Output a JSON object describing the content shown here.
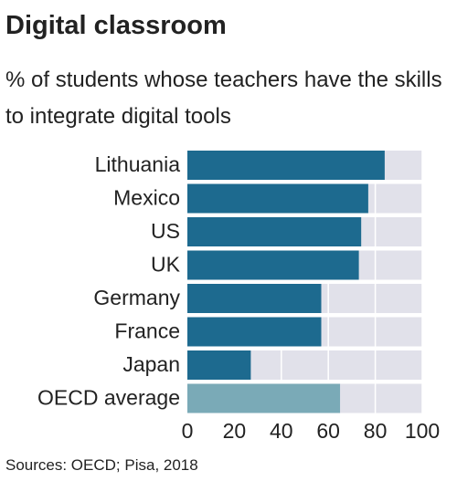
{
  "chart_data": {
    "type": "barh",
    "title": "Digital classroom",
    "subtitle": "% of students whose teachers have the skills to integrate digital tools",
    "categories": [
      "Lithuania",
      "Mexico",
      "US",
      "UK",
      "Germany",
      "France",
      "Japan",
      "OECD average"
    ],
    "values": [
      84,
      77,
      74,
      73,
      57,
      57,
      27,
      65
    ],
    "colors": [
      "#1d6a8f",
      "#1d6a8f",
      "#1d6a8f",
      "#1d6a8f",
      "#1d6a8f",
      "#1d6a8f",
      "#1d6a8f",
      "#7aaab7"
    ],
    "background_color": "#e1e1ea",
    "xlim": [
      0,
      100
    ],
    "xticks": [
      0,
      20,
      40,
      60,
      80,
      100
    ],
    "grid": true,
    "source": "Sources: OECD; Pisa, 2018"
  }
}
